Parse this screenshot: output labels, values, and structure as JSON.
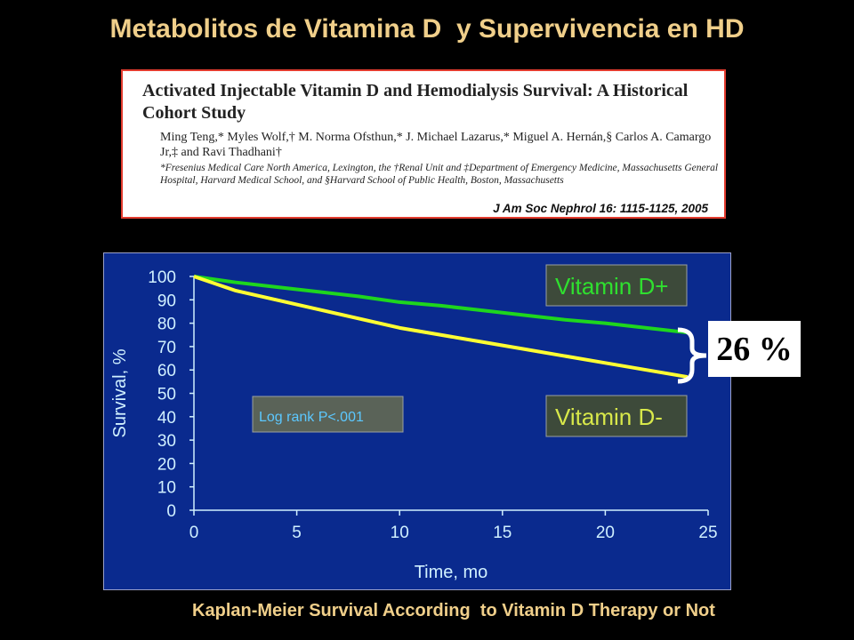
{
  "slide": {
    "title": "Metabolitos de Vitamina D  y Supervivencia en HD",
    "caption": "Kaplan-Meier Survival According  to Vitamin D Therapy or Not"
  },
  "citation": {
    "title": "Activated Injectable Vitamin D and Hemodialysis Survival: A Historical Cohort Study",
    "authors": "Ming Teng,* Myles Wolf,† M. Norma Ofsthun,* J. Michael Lazarus,* Miguel A. Hernán,§ Carlos A. Camargo Jr,‡ and Ravi Thadhani†",
    "affiliations": "*Fresenius Medical Care North America, Lexington, the †Renal Unit and ‡Department of Emergency Medicine, Massachusetts General Hospital, Harvard Medical School, and §Harvard School of Public Health, Boston, Massachusetts",
    "journal": "J Am Soc Nephrol 16: 1115-1125, 2005"
  },
  "annotation": {
    "difference": "26 %"
  },
  "chart_data": {
    "type": "line",
    "xlabel": "Time, mo",
    "ylabel": "Survival, %",
    "xlim": [
      0,
      25
    ],
    "ylim": [
      0,
      100
    ],
    "xticks": [
      0,
      5,
      10,
      15,
      20,
      25
    ],
    "yticks": [
      0,
      10,
      20,
      30,
      40,
      50,
      60,
      70,
      80,
      90,
      100
    ],
    "annotation": "Log rank P<.001",
    "series": [
      {
        "name": "Vitamin  D+",
        "color": "#1ed61e",
        "x": [
          0,
          2,
          4,
          6,
          8,
          10,
          12,
          14,
          16,
          18,
          20,
          22,
          24
        ],
        "y": [
          100,
          97.5,
          95.5,
          93.5,
          91.5,
          89,
          87.5,
          85.5,
          83.5,
          81.5,
          80,
          78,
          76
        ]
      },
      {
        "name": "Vitamin  D-",
        "color": "#ffff33",
        "x": [
          0,
          1,
          2,
          4,
          6,
          8,
          10,
          12,
          14,
          16,
          18,
          20,
          22,
          24
        ],
        "y": [
          100,
          97,
          94,
          90,
          86,
          82,
          78,
          75,
          72,
          69,
          66,
          63,
          60,
          57
        ]
      }
    ],
    "background": "#0a2a8e",
    "text_color": "#d0f0ff"
  }
}
